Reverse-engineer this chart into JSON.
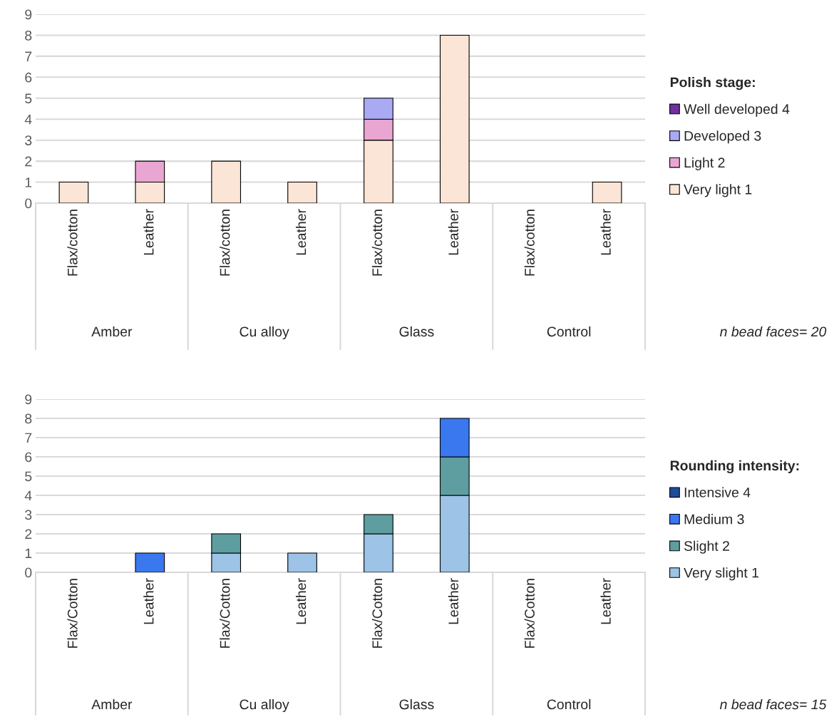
{
  "chart_data": [
    {
      "type": "bar",
      "stacked": true,
      "categories": [
        "Flax/cotton",
        "Leather",
        "Flax/cotton",
        "Leather",
        "Flax/cotton",
        "Leather",
        "Flax/cotton",
        "Leather"
      ],
      "legend_title": "Polish stage:",
      "legend": "right",
      "grid": "y",
      "ylim": [
        0,
        9
      ],
      "yticks": [
        0,
        1,
        2,
        3,
        4,
        5,
        6,
        7,
        8,
        9
      ],
      "series": [
        {
          "name": "Very light 1",
          "color": "#fbe5d6",
          "values": [
            1,
            1,
            2,
            1,
            3,
            8,
            null,
            1
          ]
        },
        {
          "name": "Light 2",
          "color": "#eaa6d2",
          "values": [
            null,
            1,
            null,
            null,
            1,
            null,
            null,
            null
          ]
        },
        {
          "name": "Developed 3",
          "color": "#aaaaf4",
          "values": [
            null,
            null,
            null,
            null,
            1,
            null,
            null,
            null
          ]
        },
        {
          "name": "Well developed 4",
          "color": "#7030a0",
          "values": [
            null,
            null,
            null,
            null,
            null,
            null,
            null,
            null
          ]
        }
      ],
      "annotations": [
        "Amber",
        "Cu alloy",
        "Glass",
        "Control",
        "n bead faces= 20"
      ]
    },
    {
      "type": "bar",
      "stacked": true,
      "categories": [
        "Flax/Cotton",
        "Leather",
        "Flax/Cotton",
        "Leather",
        "Flax/Cotton",
        "Leather",
        "Flax/Cotton",
        "Leather"
      ],
      "legend_title": "Rounding intensity:",
      "legend": "right",
      "grid": "y",
      "ylim": [
        0,
        9
      ],
      "yticks": [
        0,
        1,
        2,
        3,
        4,
        5,
        6,
        7,
        8,
        9
      ],
      "series": [
        {
          "name": "Very slight 1",
          "color": "#9dc3e6",
          "values": [
            null,
            null,
            1,
            1,
            2,
            4,
            null,
            null
          ]
        },
        {
          "name": "Slight 2",
          "color": "#5f9ea0",
          "values": [
            null,
            null,
            1,
            null,
            1,
            2,
            null,
            null
          ]
        },
        {
          "name": "Medium 3",
          "color": "#3a78f0",
          "values": [
            null,
            1,
            null,
            null,
            null,
            2,
            null,
            null
          ]
        },
        {
          "name": "Intensive 4",
          "color": "#1f4e99",
          "values": [
            null,
            null,
            null,
            null,
            null,
            null,
            null,
            null
          ]
        }
      ],
      "annotations": [
        "Amber",
        "Cu alloy",
        "Glass",
        "Control",
        "n bead faces= 15"
      ]
    }
  ]
}
